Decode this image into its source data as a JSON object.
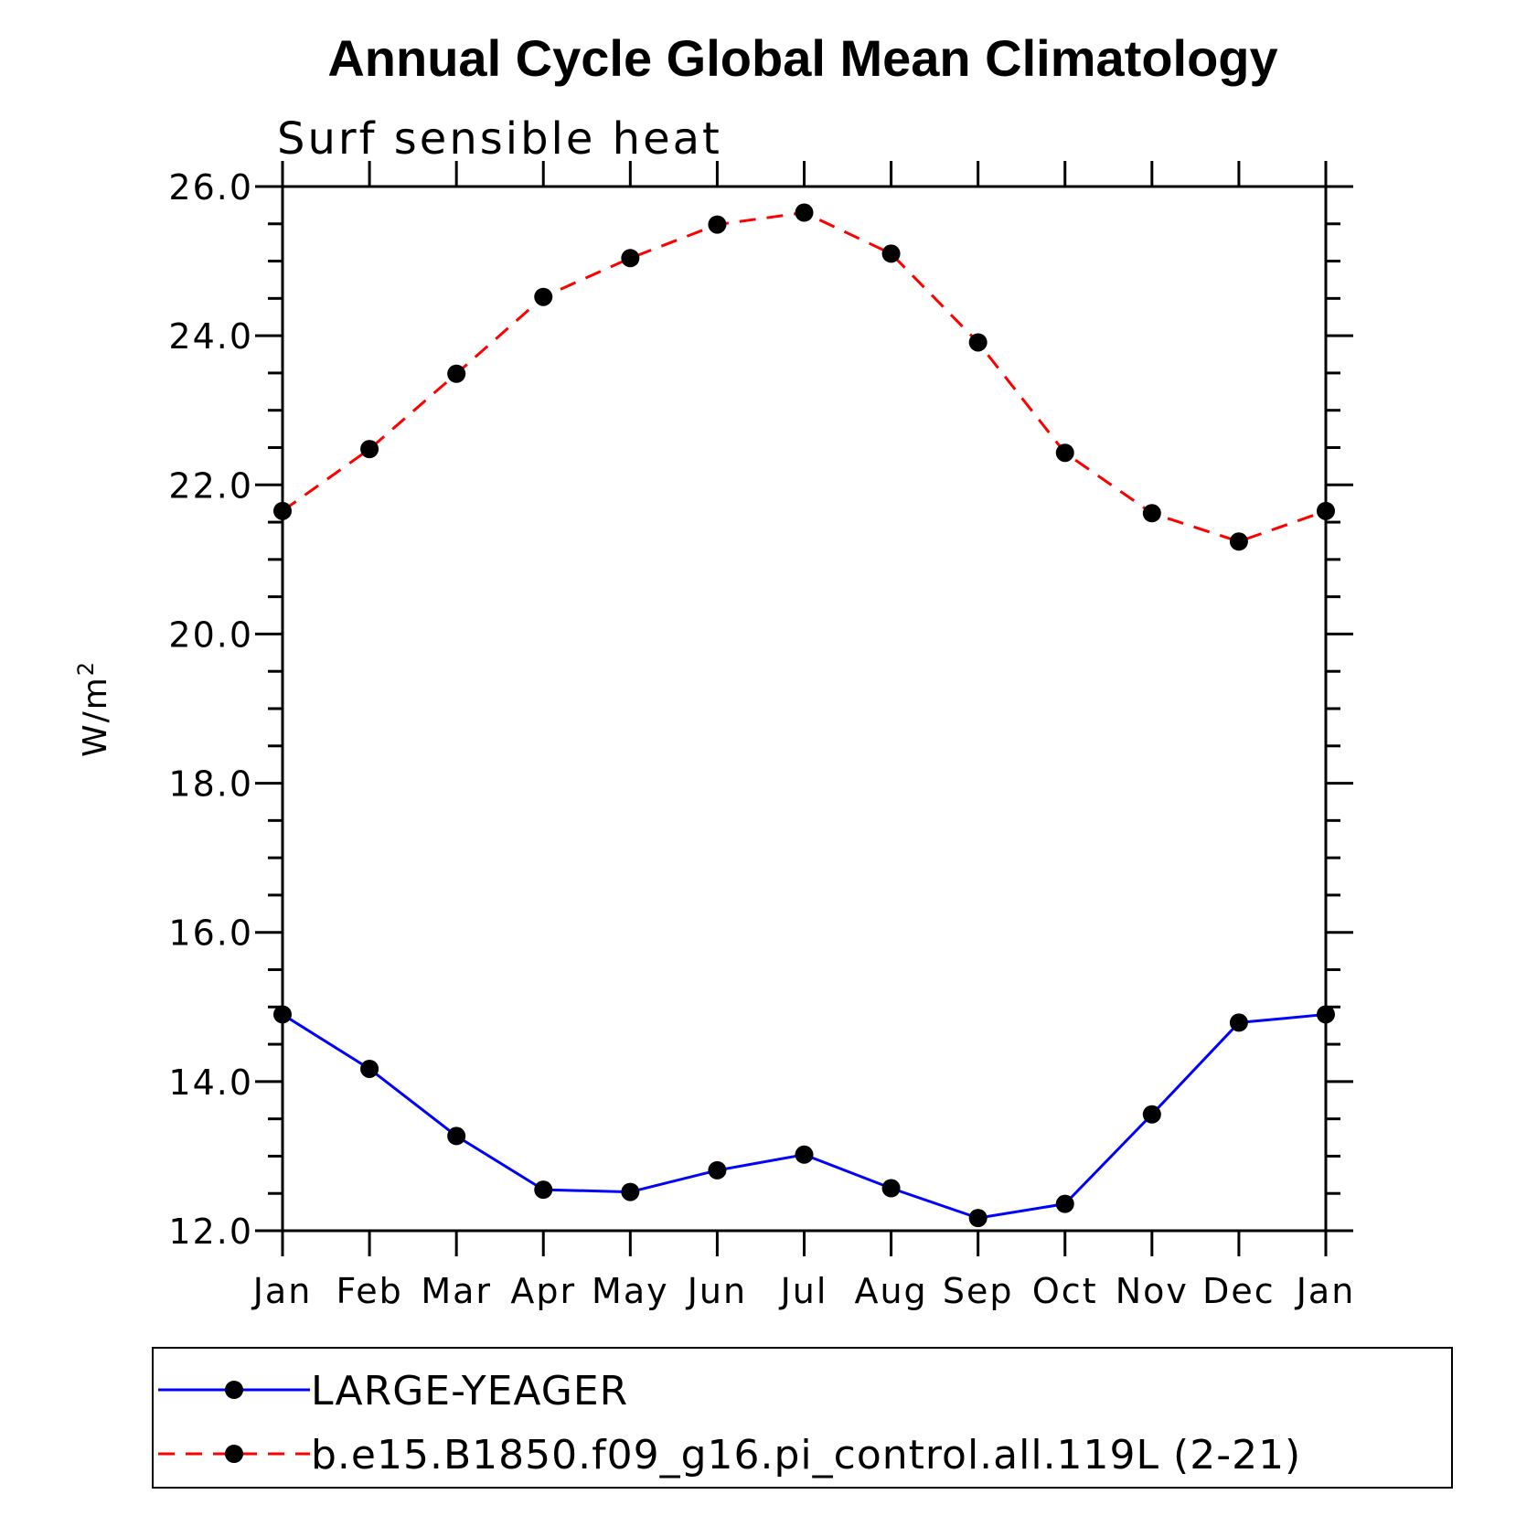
{
  "chart_data": {
    "type": "line",
    "title": "Annual Cycle Global Mean Climatology",
    "subtitle": "Surf sensible heat",
    "ylabel": "W/m",
    "ylabel_superscript": "2",
    "xlabel": "",
    "categories": [
      "Jan",
      "Feb",
      "Mar",
      "Apr",
      "May",
      "Jun",
      "Jul",
      "Aug",
      "Sep",
      "Oct",
      "Nov",
      "Dec",
      "Jan"
    ],
    "ylim": [
      12.0,
      26.0
    ],
    "yticks": [
      "12.0",
      "14.0",
      "16.0",
      "18.0",
      "20.0",
      "22.0",
      "24.0",
      "26.0"
    ],
    "series": [
      {
        "name": "LARGE-YEAGER",
        "color": "#0000ff",
        "dash": "solid",
        "values": [
          14.9,
          14.17,
          13.27,
          12.55,
          12.52,
          12.81,
          13.02,
          12.57,
          12.17,
          12.36,
          13.56,
          14.79,
          14.9
        ]
      },
      {
        "name": "b.e15.B1850.f09_g16.pi_control.all.119L (2-21)",
        "color": "#ff0000",
        "dash": "dashed",
        "values": [
          21.65,
          22.48,
          23.49,
          24.52,
          25.04,
          25.49,
          25.65,
          25.1,
          23.91,
          22.43,
          21.62,
          21.24,
          21.65
        ]
      }
    ],
    "legend_position": "bottom"
  }
}
